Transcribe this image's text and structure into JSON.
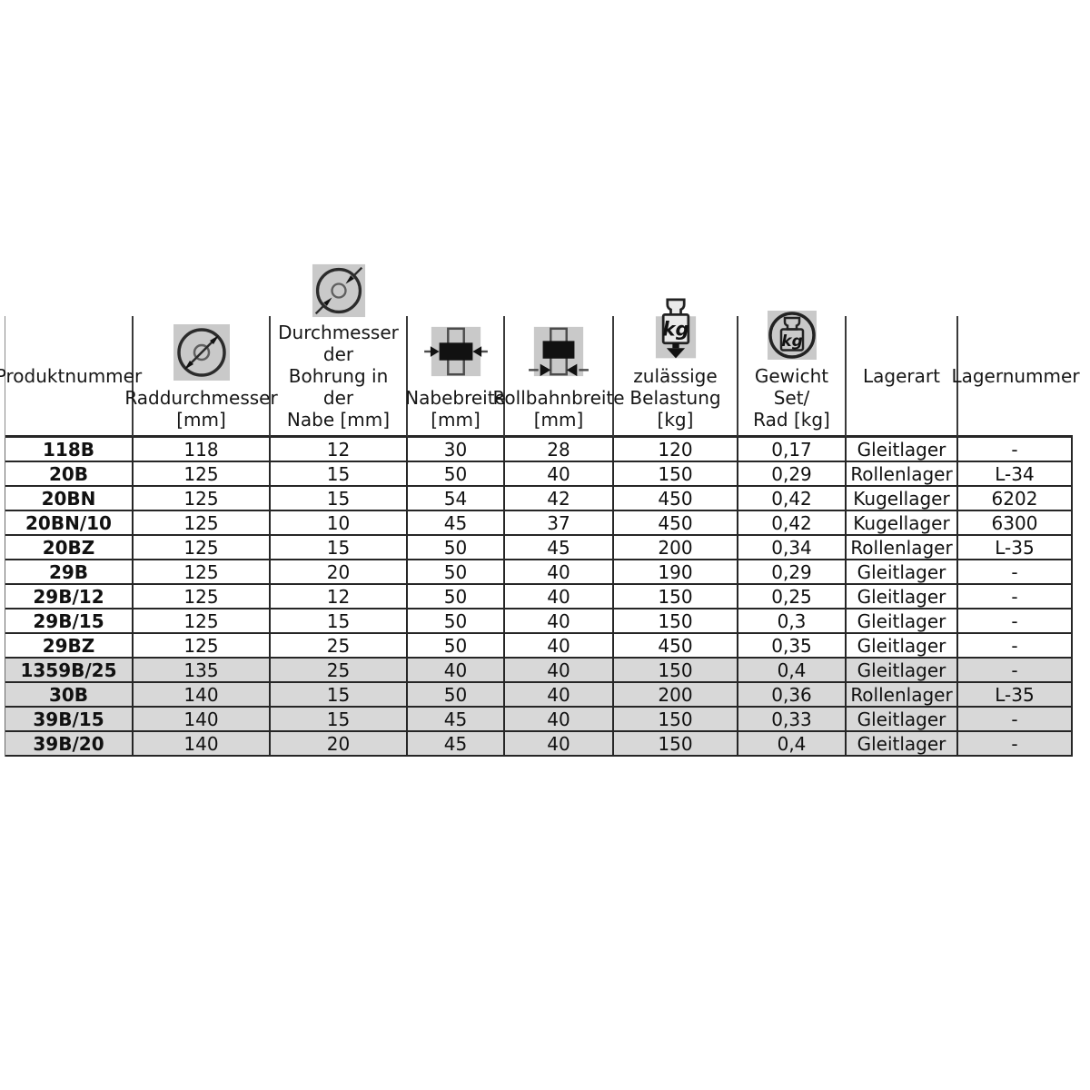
{
  "table": {
    "columns": [
      {
        "label": "Produktnummer",
        "icon": null
      },
      {
        "label": "Raddurchmesser\n[mm]",
        "icon": "wheel-diameter-icon"
      },
      {
        "label": "Durchmesser der\nBohrung in der\nNabe [mm]",
        "icon": "bore-diameter-icon"
      },
      {
        "label": "Nabebreite\n[mm]",
        "icon": "hub-width-icon"
      },
      {
        "label": "Rollbahnbreite\n[mm]",
        "icon": "tread-width-icon"
      },
      {
        "label": "zulässige\nBelastung [kg]",
        "icon": "load-capacity-icon"
      },
      {
        "label": "Gewicht Set/\nRad [kg]",
        "icon": "set-weight-icon"
      },
      {
        "label": "Lagerart",
        "icon": null
      },
      {
        "label": "Lagernummer",
        "icon": null
      }
    ],
    "rows": [
      {
        "shaded": false,
        "cells": [
          "118B",
          "118",
          "12",
          "30",
          "28",
          "120",
          "0,17",
          "Gleitlager",
          "-"
        ]
      },
      {
        "shaded": false,
        "cells": [
          "20B",
          "125",
          "15",
          "50",
          "40",
          "150",
          "0,29",
          "Rollenlager",
          "L-34"
        ]
      },
      {
        "shaded": false,
        "cells": [
          "20BN",
          "125",
          "15",
          "54",
          "42",
          "450",
          "0,42",
          "Kugellager",
          "6202"
        ]
      },
      {
        "shaded": false,
        "cells": [
          "20BN/10",
          "125",
          "10",
          "45",
          "37",
          "450",
          "0,42",
          "Kugellager",
          "6300"
        ]
      },
      {
        "shaded": false,
        "cells": [
          "20BZ",
          "125",
          "15",
          "50",
          "45",
          "200",
          "0,34",
          "Rollenlager",
          "L-35"
        ]
      },
      {
        "shaded": false,
        "cells": [
          "29B",
          "125",
          "20",
          "50",
          "40",
          "190",
          "0,29",
          "Gleitlager",
          "-"
        ]
      },
      {
        "shaded": false,
        "cells": [
          "29B/12",
          "125",
          "12",
          "50",
          "40",
          "150",
          "0,25",
          "Gleitlager",
          "-"
        ]
      },
      {
        "shaded": false,
        "cells": [
          "29B/15",
          "125",
          "15",
          "50",
          "40",
          "150",
          "0,3",
          "Gleitlager",
          "-"
        ]
      },
      {
        "shaded": false,
        "cells": [
          "29BZ",
          "125",
          "25",
          "50",
          "40",
          "450",
          "0,35",
          "Gleitlager",
          "-"
        ]
      },
      {
        "shaded": true,
        "cells": [
          "1359B/25",
          "135",
          "25",
          "40",
          "40",
          "150",
          "0,4",
          "Gleitlager",
          "-"
        ]
      },
      {
        "shaded": true,
        "cells": [
          "30B",
          "140",
          "15",
          "50",
          "40",
          "200",
          "0,36",
          "Rollenlager",
          "L-35"
        ]
      },
      {
        "shaded": true,
        "cells": [
          "39B/15",
          "140",
          "15",
          "45",
          "40",
          "150",
          "0,33",
          "Gleitlager",
          "-"
        ]
      },
      {
        "shaded": true,
        "cells": [
          "39B/20",
          "140",
          "20",
          "45",
          "40",
          "150",
          "0,4",
          "Gleitlager",
          "-"
        ]
      }
    ]
  },
  "icons": {
    "kg_label": "kg"
  },
  "colors": {
    "page_bg": "#ffffff",
    "shaded_row_bg": "#d8d8d8",
    "icon_bg": "#c9c9c9",
    "border": "#262626",
    "text": "#111111"
  }
}
